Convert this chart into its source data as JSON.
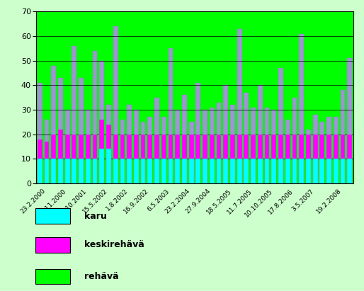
{
  "dates": [
    "23.2.2000",
    "8.11.2000",
    "25.10.2001",
    "15.5.2002",
    "1.8.2002",
    "16.9.2002",
    "6.5.2003",
    "23.2.2004",
    "27.9.2004",
    "18.5.2005",
    "11.7.2005",
    "10.10.2005",
    "17.8.2006",
    "3.5.2007",
    "19.2.2008"
  ],
  "bar_totals": [
    41,
    26,
    48,
    43,
    30,
    56,
    43,
    30,
    54,
    50,
    32,
    64,
    26,
    32,
    30,
    25,
    27,
    35,
    27,
    55,
    30,
    36,
    25,
    41,
    30,
    31,
    33,
    40,
    32,
    63,
    37,
    31,
    40,
    31,
    30,
    47,
    26,
    35,
    61,
    22,
    28,
    25,
    27,
    27,
    38,
    51
  ],
  "karu_base": 10,
  "karu_special": 14,
  "karu_special_index": 9,
  "keski_base": 10,
  "color_karu": "#00ffff",
  "color_keskireheva": "#ff00ff",
  "color_reheva": "#00ff00",
  "color_bar_fill": "#9999cc",
  "color_bar_edge": "#8888bb",
  "bg_outer": "#ccffcc",
  "bg_plot": "#00ff00",
  "ylim": [
    0,
    70
  ],
  "yticks": [
    0,
    10,
    20,
    30,
    40,
    50,
    60,
    70
  ],
  "legend_karu": "karu",
  "legend_keskireheva": "keskirehävä",
  "legend_reheva": "rehävä",
  "tick_positions": [
    1,
    4,
    7,
    10,
    13,
    16,
    19,
    22,
    25,
    28,
    31,
    34,
    37,
    40,
    44
  ]
}
